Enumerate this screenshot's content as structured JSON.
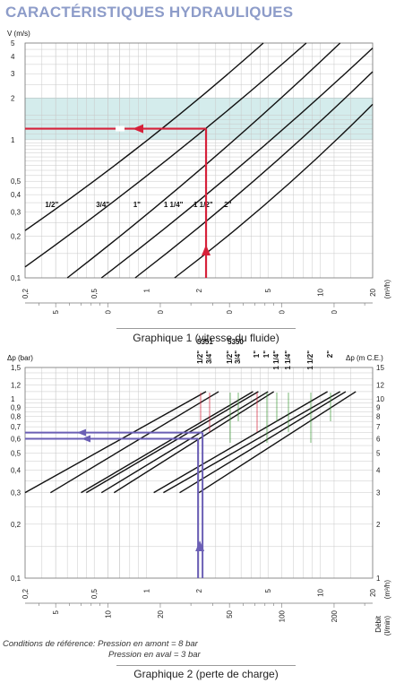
{
  "page_title": "CARACTÉRISTIQUES HYDRAULIQUES",
  "chart_data": [
    {
      "type": "line",
      "scale": "log-log",
      "ylabel": "V (m/s)",
      "x_unit_top": "(m³/h)",
      "x_unit_bottom": "(l/min)",
      "x_axis_name": "Débit",
      "xlim": [
        0.2,
        20
      ],
      "ylim": [
        0.1,
        5
      ],
      "x_ticks_top": [
        "0,2",
        "0,5",
        "1",
        "2",
        "5",
        "10",
        "20"
      ],
      "x_ticks_bottom": [
        "5",
        "10",
        "20",
        "50",
        "100",
        "200"
      ],
      "y_ticks": [
        "5",
        "4",
        "3",
        "2",
        "1",
        "0,5",
        "0,4",
        "0,3",
        "0,2",
        "0,1"
      ],
      "shaded_band_y": [
        1,
        2
      ],
      "series": [
        {
          "name": "1/2\"",
          "x": [
            0.2,
            4.7
          ],
          "y": [
            0.22,
            5
          ]
        },
        {
          "name": "3/4\"",
          "x": [
            0.2,
            8.3
          ],
          "y": [
            0.12,
            5
          ]
        },
        {
          "name": "1\"",
          "x": [
            0.35,
            13
          ],
          "y": [
            0.1,
            5
          ]
        },
        {
          "name": "1 1/4\"",
          "x": [
            0.55,
            20
          ],
          "y": [
            0.1,
            4.6
          ]
        },
        {
          "name": "1 1/2\"",
          "x": [
            0.86,
            20
          ],
          "y": [
            0.1,
            3.1
          ]
        },
        {
          "name": "2\"",
          "x": [
            1.45,
            20
          ],
          "y": [
            0.1,
            1.8
          ]
        }
      ],
      "annotation": {
        "x": 2.2,
        "y": 1.2,
        "color": "#d6213a"
      },
      "caption": "Graphique 1 (vitesse du fluide)"
    },
    {
      "type": "line",
      "scale": "log-log",
      "ylabel": "Δp (bar)",
      "ylabel_right": "Δp (m C.E.)",
      "x_unit_top": "(m³/h)",
      "x_unit_bottom": "(l/min)",
      "x_axis_name": "Débit",
      "xlim": [
        0.2,
        20
      ],
      "ylim": [
        0.1,
        1.5
      ],
      "x_ticks_top": [
        "0,2",
        "0,5",
        "1",
        "2",
        "5",
        "10",
        "20"
      ],
      "x_ticks_bottom": [
        "5",
        "10",
        "20",
        "50",
        "100",
        "200"
      ],
      "y_ticks": [
        "1,5",
        "1,2",
        "1",
        "0,9",
        "0,8",
        "0,7",
        "0,6",
        "0,5",
        "0,4",
        "0,3",
        "0,2",
        "0,1"
      ],
      "y_ticks_right": [
        "15",
        "12",
        "10",
        "9",
        "8",
        "7",
        "6",
        "5",
        "4",
        "3",
        "2",
        "1"
      ],
      "model_labels": [
        {
          "text": "5351",
          "color": "#d6213a"
        },
        {
          "text": "5350",
          "color": "#3f9a3a"
        }
      ],
      "series_labels": [
        {
          "text": "1/2\"",
          "color": "#d6213a"
        },
        {
          "text": "3/4\"",
          "color": "#d6213a"
        },
        {
          "text": "1/2\"",
          "color": "#3f9a3a"
        },
        {
          "text": "3/4\"",
          "color": "#3f9a3a"
        },
        {
          "text": "1\"",
          "color": "#d6213a"
        },
        {
          "text": "1\"",
          "color": "#3f9a3a"
        },
        {
          "text": "1 1/4\"",
          "color": "#3f9a3a"
        },
        {
          "text": "1 1/4\"",
          "color": "#3f9a3a"
        },
        {
          "text": "1 1/2\"",
          "color": "#3f9a3a"
        },
        {
          "text": "2\"",
          "color": "#3f9a3a"
        }
      ],
      "series": [
        {
          "x": [
            0.2,
            2.2
          ],
          "y": [
            0.3,
            1.1
          ]
        },
        {
          "x": [
            0.28,
            2.6
          ],
          "y": [
            0.3,
            1.1
          ]
        },
        {
          "x": [
            0.42,
            4.1
          ],
          "y": [
            0.3,
            1.1
          ]
        },
        {
          "x": [
            0.45,
            4.4
          ],
          "y": [
            0.3,
            1.1
          ]
        },
        {
          "x": [
            0.55,
            5.0
          ],
          "y": [
            0.3,
            1.1
          ]
        },
        {
          "x": [
            0.65,
            5.4
          ],
          "y": [
            0.3,
            1.1
          ]
        },
        {
          "x": [
            1.1,
            11
          ],
          "y": [
            0.3,
            1.1
          ]
        },
        {
          "x": [
            1.25,
            13
          ],
          "y": [
            0.3,
            1.1
          ]
        },
        {
          "x": [
            1.55,
            14
          ],
          "y": [
            0.3,
            1.1
          ]
        },
        {
          "x": [
            2.0,
            16
          ],
          "y": [
            0.3,
            1.1
          ]
        }
      ],
      "annotation": {
        "x": 2.1,
        "y": 0.6,
        "y2": 0.65,
        "color": "#6b5fb5"
      },
      "caption": "Graphique 2 (perte de charge)"
    }
  ],
  "conditions": {
    "line1": "Conditions de référence: Pression en amont = 8 bar",
    "line2": "Pression en aval = 3 bar"
  },
  "colors": {
    "title": "#8d9cc9",
    "band": "#d4ecec",
    "grid": "#c8c8c8",
    "curve": "#111111"
  }
}
